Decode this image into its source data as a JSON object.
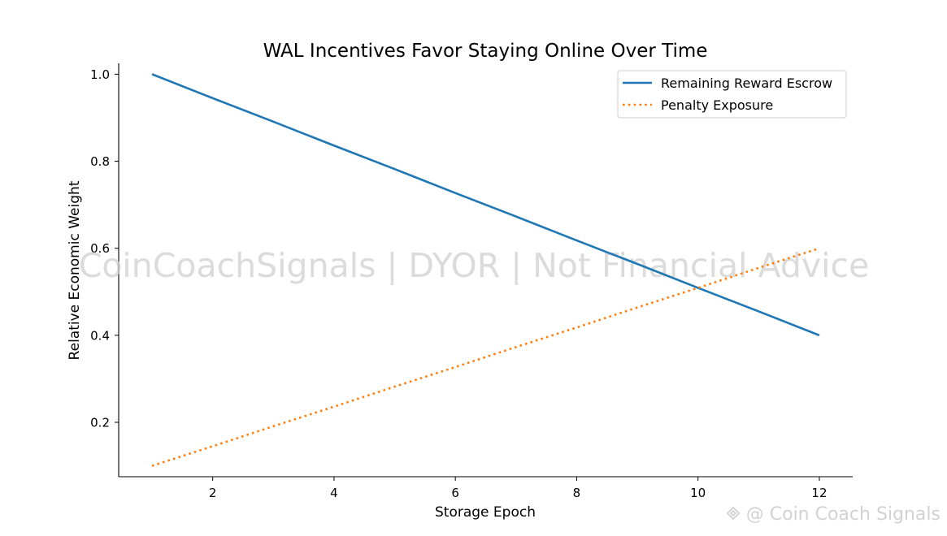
{
  "watermark_center": "CoinCoachSignals | DYOR | Not Financial Advice",
  "watermark_corner": "@ Coin Coach Signals",
  "chart_data": {
    "type": "line",
    "title": "WAL Incentives Favor Staying Online Over Time",
    "xlabel": "Storage Epoch",
    "ylabel": "Relative Economic Weight",
    "x": [
      1,
      2,
      3,
      4,
      5,
      6,
      7,
      8,
      9,
      10,
      11,
      12
    ],
    "xlim": [
      0.45,
      12.55
    ],
    "ylim": [
      0.075,
      1.025
    ],
    "xticks": [
      2,
      4,
      6,
      8,
      10,
      12
    ],
    "yticks": [
      0.2,
      0.4,
      0.6,
      0.8,
      1.0
    ],
    "xtick_labels": [
      "2",
      "4",
      "6",
      "8",
      "10",
      "12"
    ],
    "ytick_labels": [
      "0.2",
      "0.4",
      "0.6",
      "0.8",
      "1.0"
    ],
    "series": [
      {
        "name": "Remaining Reward Escrow",
        "color": "#1f77b4",
        "style": "solid",
        "values": [
          1.0,
          0.945,
          0.891,
          0.836,
          0.782,
          0.727,
          0.673,
          0.618,
          0.564,
          0.509,
          0.455,
          0.4
        ]
      },
      {
        "name": "Penalty Exposure",
        "color": "#ff7f0e",
        "style": "dotted",
        "values": [
          0.1,
          0.145,
          0.191,
          0.236,
          0.282,
          0.327,
          0.373,
          0.418,
          0.464,
          0.509,
          0.555,
          0.6
        ]
      }
    ],
    "legend": "upper-right",
    "grid": false
  }
}
